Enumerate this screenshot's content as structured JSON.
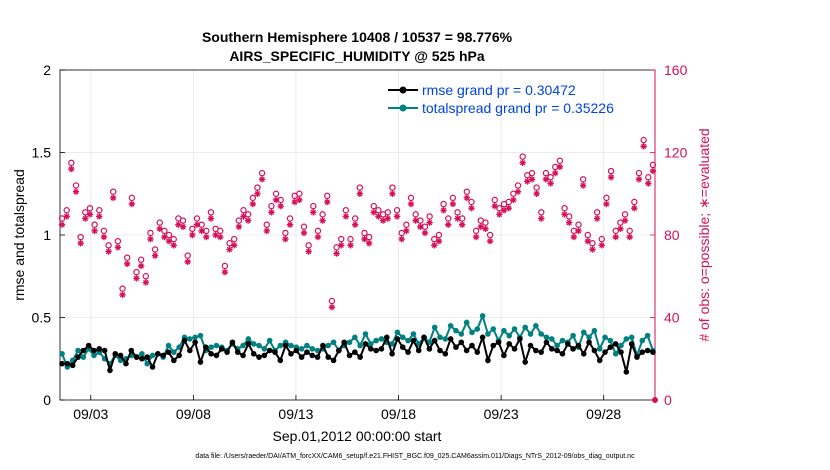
{
  "chart_data": {
    "type": "line",
    "title_line1": "Southern Hemisphere 10408 / 10537 = 98.776%",
    "title_line2": "AIRS_SPECIFIC_HUMIDITY @ 525 hPa",
    "xlabel": "Sep.01,2012 00:00:00 start",
    "ylabel_left": "rmse and totalspread",
    "ylabel_right": "# of obs: o=possible; ∗=evaluated",
    "footnote": "data file: /Users/raeder/DAI/ATM_forcXX/CAM6_setup/f.e21.FHIST_BGC.f09_025.CAM6assim.011/Diags_NTrS_2012-09/obs_diag_output.nc",
    "x_tick_labels": [
      "09/03",
      "09/08",
      "09/13",
      "09/18",
      "09/23",
      "09/28"
    ],
    "x_tick_days": [
      3,
      8,
      13,
      18,
      23,
      28
    ],
    "xlim_days": [
      1.5,
      30.5
    ],
    "ylim_left": [
      0,
      2
    ],
    "left_ticks": [
      "0",
      "0.5",
      "1",
      "1.5",
      "2"
    ],
    "ylim_right": [
      0,
      160
    ],
    "right_ticks": [
      "0",
      "40",
      "80",
      "120",
      "160"
    ],
    "legend_position": "top-right",
    "colors": {
      "rmse": "#000000",
      "spread": "#008080",
      "obs": "#d6105a",
      "legend_text": "#0044dd",
      "grid": "#e6e6e6"
    },
    "series": [
      {
        "name": "rmse grand pr = 0.30472",
        "values": [
          0.22,
          0.22,
          0.21,
          0.26,
          0.3,
          0.33,
          0.3,
          0.31,
          0.3,
          0.18,
          0.28,
          0.27,
          0.22,
          0.3,
          0.26,
          0.25,
          0.26,
          0.2,
          0.28,
          0.27,
          0.29,
          0.24,
          0.27,
          0.36,
          0.3,
          0.35,
          0.23,
          0.32,
          0.28,
          0.27,
          0.31,
          0.29,
          0.35,
          0.29,
          0.27,
          0.34,
          0.28,
          0.26,
          0.27,
          0.3,
          0.29,
          0.24,
          0.33,
          0.28,
          0.3,
          0.26,
          0.29,
          0.27,
          0.26,
          0.33,
          0.26,
          0.24,
          0.3,
          0.35,
          0.27,
          0.29,
          0.26,
          0.34,
          0.31,
          0.3,
          0.31,
          0.38,
          0.28,
          0.37,
          0.32,
          0.29,
          0.36,
          0.3,
          0.38,
          0.31,
          0.36,
          0.3,
          0.28,
          0.37,
          0.32,
          0.35,
          0.3,
          0.33,
          0.29,
          0.38,
          0.24,
          0.33,
          0.35,
          0.27,
          0.34,
          0.31,
          0.37,
          0.23,
          0.33,
          0.3,
          0.29,
          0.35,
          0.31,
          0.3,
          0.28,
          0.34,
          0.31,
          0.33,
          0.28,
          0.35,
          0.3,
          0.24,
          0.29,
          0.32,
          0.34,
          0.29,
          0.17,
          0.34,
          0.26,
          0.29,
          0.3,
          0.29
        ]
      },
      {
        "name": "totalspread grand pr = 0.35226",
        "values": [
          0.28,
          0.2,
          0.24,
          0.3,
          0.26,
          0.31,
          0.27,
          0.29,
          0.25,
          0.22,
          0.27,
          0.24,
          0.25,
          0.27,
          0.26,
          0.28,
          0.22,
          0.27,
          0.28,
          0.26,
          0.33,
          0.29,
          0.32,
          0.38,
          0.37,
          0.38,
          0.39,
          0.3,
          0.32,
          0.33,
          0.32,
          0.3,
          0.34,
          0.31,
          0.33,
          0.37,
          0.34,
          0.33,
          0.31,
          0.36,
          0.3,
          0.33,
          0.35,
          0.33,
          0.32,
          0.31,
          0.33,
          0.31,
          0.3,
          0.31,
          0.33,
          0.35,
          0.3,
          0.33,
          0.35,
          0.38,
          0.33,
          0.4,
          0.34,
          0.36,
          0.37,
          0.35,
          0.34,
          0.41,
          0.38,
          0.36,
          0.4,
          0.34,
          0.38,
          0.35,
          0.44,
          0.38,
          0.37,
          0.45,
          0.42,
          0.4,
          0.47,
          0.41,
          0.43,
          0.51,
          0.4,
          0.43,
          0.36,
          0.42,
          0.39,
          0.43,
          0.38,
          0.44,
          0.4,
          0.45,
          0.4,
          0.38,
          0.37,
          0.33,
          0.36,
          0.35,
          0.39,
          0.32,
          0.41,
          0.38,
          0.42,
          0.31,
          0.38,
          0.36,
          0.28,
          0.33,
          0.37,
          0.38,
          0.27,
          0.36,
          0.39,
          0.3
        ]
      }
    ],
    "obs_possible": [
      88,
      92,
      115,
      104,
      79,
      91,
      93,
      85,
      92,
      82,
      75,
      101,
      77,
      54,
      69,
      98,
      62,
      68,
      60,
      81,
      73,
      86,
      82,
      80,
      78,
      88,
      87,
      70,
      83,
      88,
      85,
      82,
      91,
      83,
      82,
      65,
      76,
      78,
      87,
      92,
      90,
      98,
      103,
      110,
      85,
      94,
      100,
      97,
      81,
      88,
      99,
      100,
      84,
      75,
      94,
      82,
      90,
      99,
      48,
      74,
      78,
      92,
      78,
      88,
      103,
      81,
      79,
      94,
      92,
      90,
      91,
      103,
      92,
      81,
      85,
      98,
      90,
      87,
      84,
      89,
      78,
      80,
      95,
      88,
      98,
      91,
      88,
      101,
      96,
      82,
      87,
      86,
      80,
      97,
      93,
      95,
      96,
      100,
      104,
      118,
      109,
      110,
      103,
      91,
      110,
      108,
      113,
      116,
      93,
      89,
      82,
      85,
      107,
      80,
      76,
      91,
      78,
      98,
      111,
      82,
      86,
      90,
      82,
      96,
      110,
      126,
      108,
      114
    ]
  }
}
